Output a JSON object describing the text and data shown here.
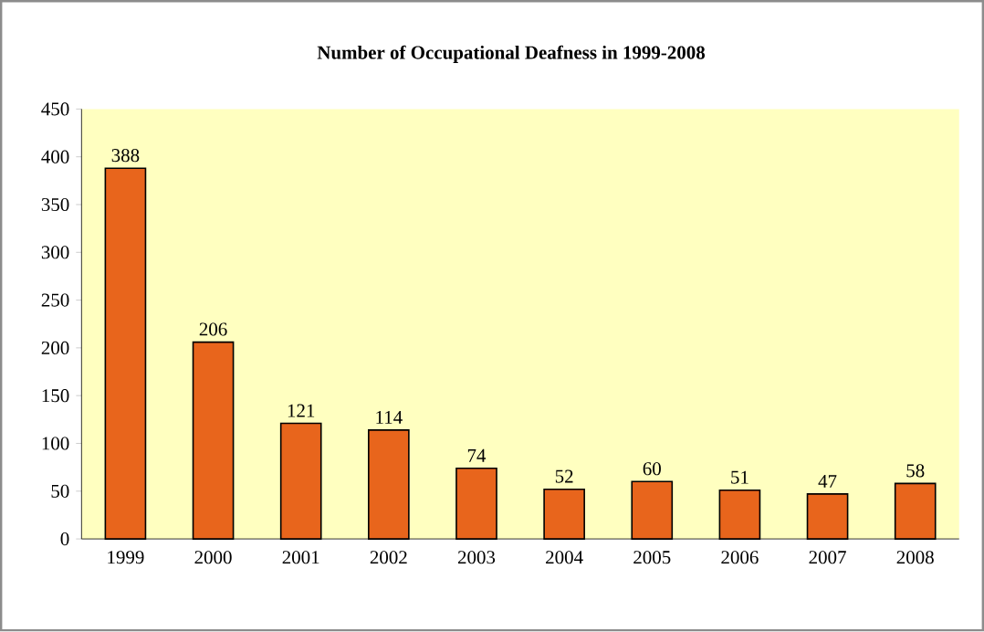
{
  "chart_data": {
    "type": "bar",
    "title": "Number of Occupational Deafness in 1999-2008",
    "categories": [
      "1999",
      "2000",
      "2001",
      "2002",
      "2003",
      "2004",
      "2005",
      "2006",
      "2007",
      "2008"
    ],
    "values": [
      388,
      206,
      121,
      114,
      74,
      52,
      60,
      51,
      47,
      58
    ],
    "color": "#e8651c",
    "ylim": [
      0,
      450
    ],
    "yticks": [
      0,
      50,
      100,
      150,
      200,
      250,
      300,
      350,
      400,
      450
    ],
    "data_labels": true
  }
}
